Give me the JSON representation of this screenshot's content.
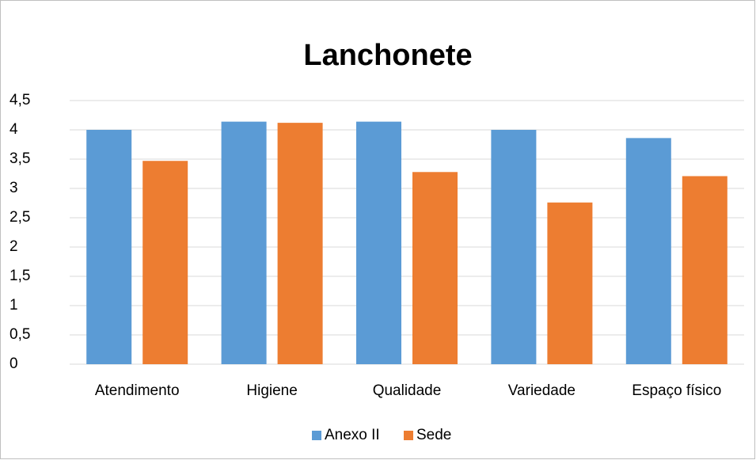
{
  "chart_data": {
    "type": "bar",
    "title": "Lanchonete",
    "categories": [
      "Atendimento",
      "Higiene",
      "Qualidade",
      "Variedade",
      "Espaço físico"
    ],
    "series": [
      {
        "name": "Anexo II",
        "color": "#5b9bd5",
        "values": [
          4.0,
          4.14,
          4.14,
          4.0,
          3.86
        ]
      },
      {
        "name": "Sede",
        "color": "#ed7d31",
        "values": [
          3.47,
          4.12,
          3.28,
          2.76,
          3.21
        ]
      }
    ],
    "ylim": [
      0,
      4.5
    ],
    "yticks": [
      0,
      {
        "value": 0.5,
        "label": "0,5"
      },
      1,
      {
        "value": 1.5,
        "label": "1,5"
      },
      2,
      {
        "value": 2.5,
        "label": "2,5"
      },
      3,
      {
        "value": 3.5,
        "label": "3,5"
      },
      4,
      {
        "value": 4.5,
        "label": "4,5"
      }
    ],
    "grid": true,
    "legend": "bottom"
  }
}
